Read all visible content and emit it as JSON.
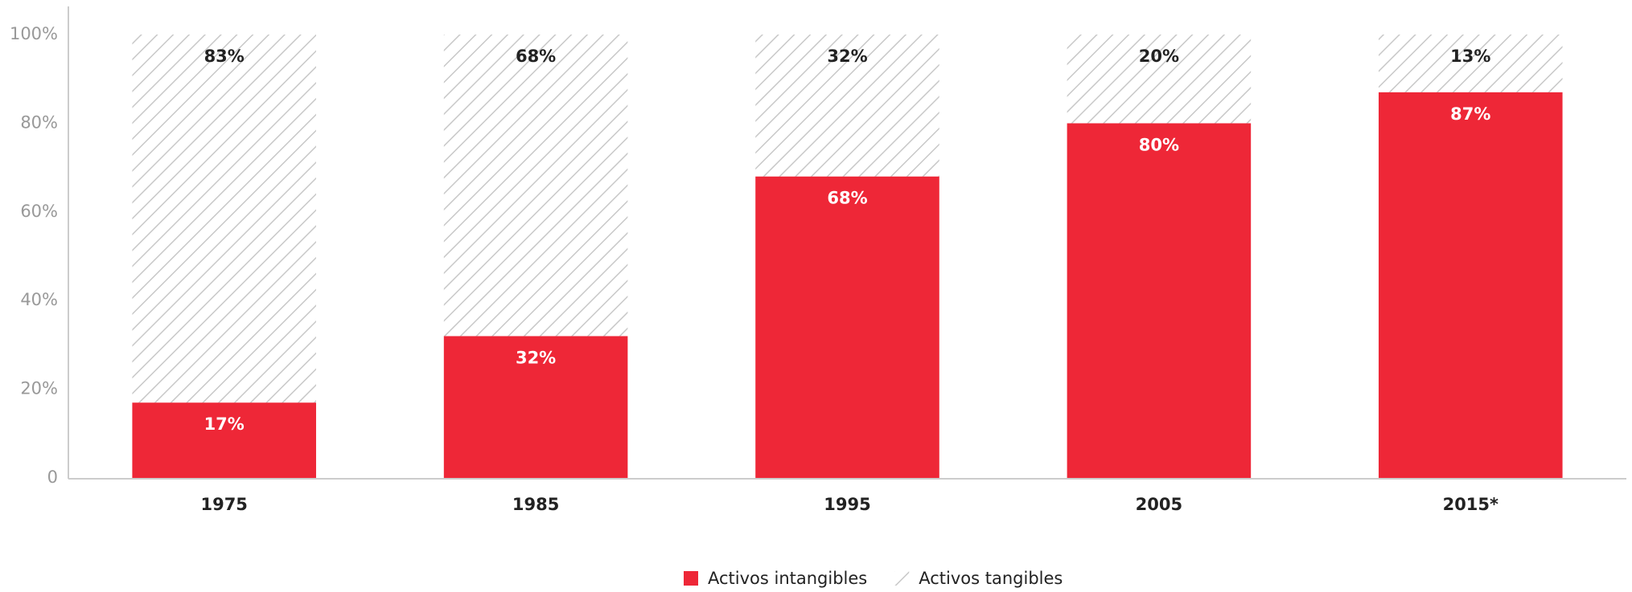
{
  "chart_data": {
    "type": "stacked_bar",
    "categories": [
      "1975",
      "1985",
      "1995",
      "2005",
      "2015*"
    ],
    "series": [
      {
        "name": "Activos intangibles",
        "color": "#ee2737",
        "values": [
          17,
          32,
          68,
          80,
          87
        ],
        "value_labels": [
          "17%",
          "32%",
          "68%",
          "80%",
          "87%"
        ]
      },
      {
        "name": "Activos tangibles",
        "color": "#c8c8c8",
        "pattern": "hatch",
        "values": [
          83,
          68,
          32,
          20,
          13
        ],
        "value_labels": [
          "83%",
          "68%",
          "32%",
          "20%",
          "13%"
        ]
      }
    ],
    "ylim": [
      0,
      100
    ],
    "yticks": [
      0,
      {
        "value": 20,
        "label": "20%"
      },
      {
        "value": 40,
        "label": "40%"
      },
      {
        "value": 60,
        "label": "60%"
      },
      {
        "value": 80,
        "label": "80%"
      },
      {
        "value": 100,
        "label": "100%"
      }
    ],
    "legend": "bottom"
  }
}
